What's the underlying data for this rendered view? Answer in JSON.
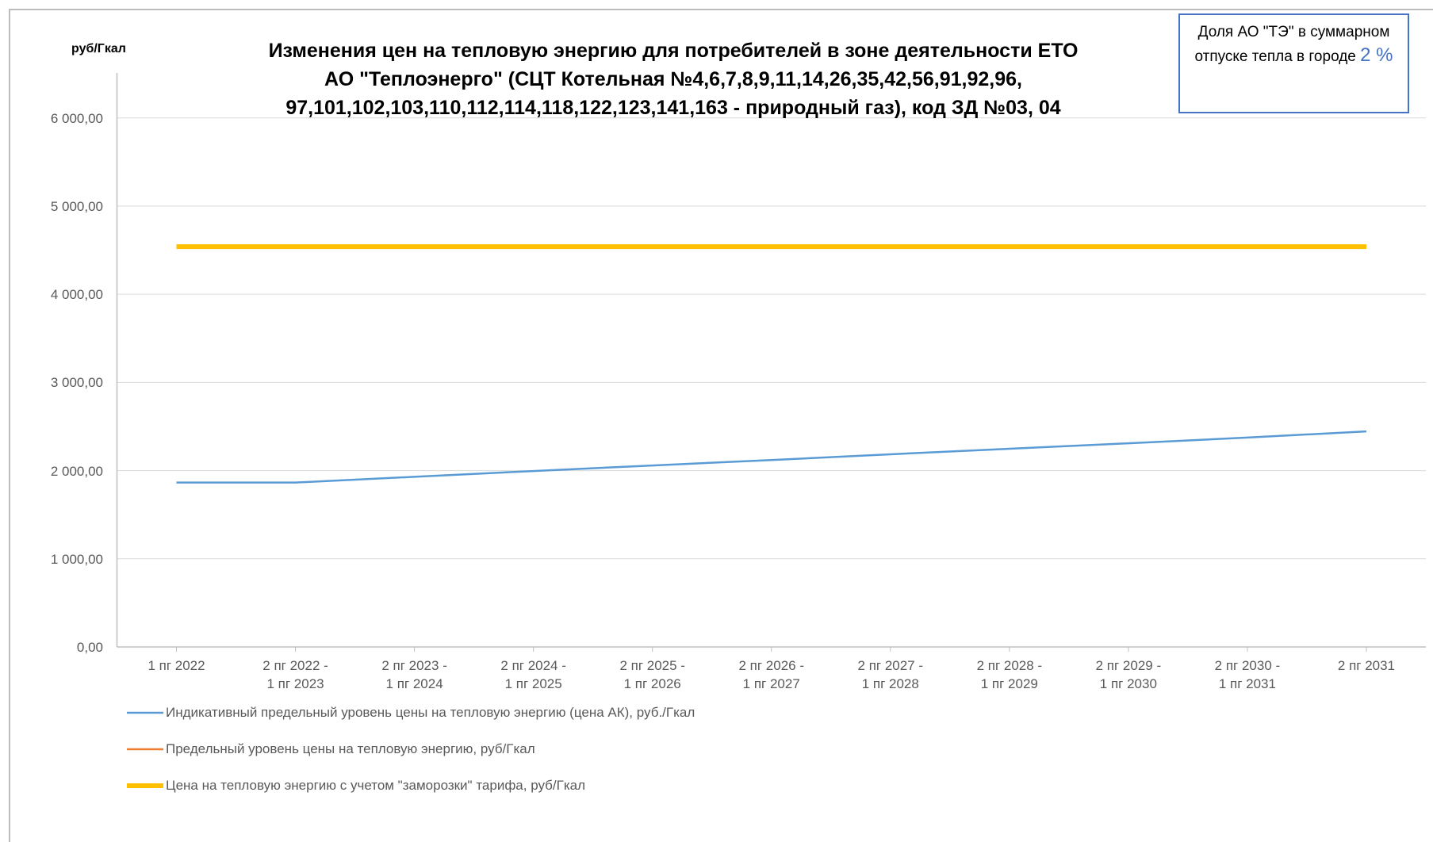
{
  "chart_data": {
    "type": "line",
    "title": [
      "Изменения цен на тепловую энергию для потребителей в зоне деятельности ЕТО",
      "АО \"Теплоэнерго\" (СЦТ Котельная №4,6,7,8,9,11,14,26,35,42,56,91,92,96,",
      "97,101,102,103,110,112,114,118,122,123,141,163 - природный газ), код ЗД №03,  04"
    ],
    "y_label": "руб/Гкал",
    "annotation": {
      "text": "Доля  АО \"ТЭ\" в суммарном отпуске тепла в городе",
      "share": "2 %"
    },
    "categories": [
      "1 пг 2022",
      "2 пг 2022 -\n1 пг 2023",
      "2 пг 2023 -\n1 пг 2024",
      "2 пг 2024 -\n1 пг 2025",
      "2 пг 2025 -\n1 пг 2026",
      "2 пг 2026 -\n1 пг 2027",
      "2 пг 2027 -\n1 пг 2028",
      "2 пг 2028 -\n1 пг 2029",
      "2 пг 2029 -\n1 пг 2030",
      "2 пг 2030 -\n1 пг 2031",
      "2 пг 2031"
    ],
    "series": [
      {
        "name": "Индикативный предельный уровень цены на тепловую энергию  (цена АК), руб./Гкал",
        "color": "#5b9bd5",
        "width": 2.5,
        "values": [
          1865,
          1865,
          1930,
          1995,
          2058,
          2120,
          2185,
          2248,
          2310,
          2375,
          2445
        ]
      },
      {
        "name": "Предельный уровень цены на тепловую энергию, руб/Гкал",
        "color": "#ed7d31",
        "width": 2.5,
        "values": [
          null,
          null,
          null,
          null,
          null,
          null,
          null,
          null,
          null,
          null,
          null
        ]
      },
      {
        "name": "Цена на тепловую энергию с учетом \"заморозки\" тарифа, руб/Гкал",
        "color": "#ffc000",
        "width": 6,
        "values": [
          4540,
          4540,
          4540,
          4540,
          4540,
          4540,
          4540,
          4540,
          4540,
          4540,
          4540
        ]
      }
    ],
    "ylim": [
      0,
      6000
    ],
    "yticks": [
      {
        "value": 0,
        "label": "0,00"
      },
      {
        "value": 1000,
        "label": "1 000,00"
      },
      {
        "value": 2000,
        "label": "2 000,00"
      },
      {
        "value": 3000,
        "label": "3 000,00"
      },
      {
        "value": 4000,
        "label": "4 000,00"
      },
      {
        "value": 5000,
        "label": "5 000,00"
      },
      {
        "value": 6000,
        "label": "6 000,00"
      }
    ],
    "grid": true
  }
}
